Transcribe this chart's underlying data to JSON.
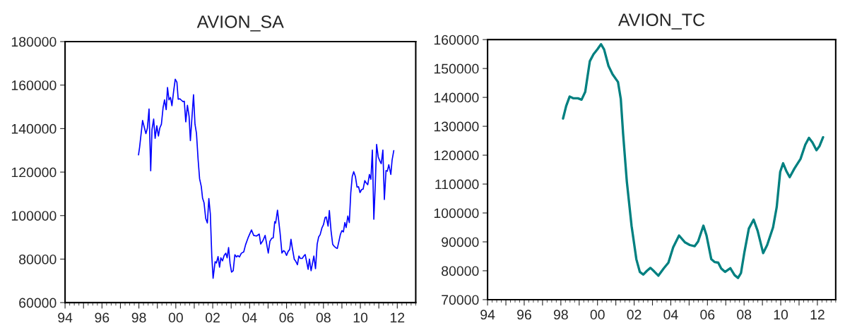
{
  "chart_data": [
    {
      "type": "line",
      "title": "AVION_SA",
      "x": [
        1997.98,
        1998.04,
        1998.2,
        1998.38,
        1998.46,
        1998.55,
        1998.64,
        1998.71,
        1998.8,
        1998.88,
        1998.97,
        1999.06,
        1999.13,
        1999.22,
        1999.31,
        1999.39,
        1999.48,
        1999.55,
        1999.63,
        1999.71,
        1999.79,
        1999.88,
        1999.97,
        2000.06,
        2000.13,
        2000.22,
        2000.31,
        2000.39,
        2000.46,
        2000.54,
        2000.63,
        2000.72,
        2000.79,
        2000.96,
        2001.04,
        2001.12,
        2001.21,
        2001.29,
        2001.38,
        2001.45,
        2001.53,
        2001.62,
        2001.71,
        2001.79,
        2001.87,
        2001.95,
        2002.02,
        2002.13,
        2002.2,
        2002.29,
        2002.37,
        2002.44,
        2002.53,
        2002.62,
        2002.71,
        2002.78,
        2002.86,
        2002.94,
        2003.02,
        2003.11,
        2003.2,
        2003.29,
        2003.36,
        2003.45,
        2003.55,
        2003.68,
        2003.78,
        2003.93,
        2004.1,
        2004.22,
        2004.37,
        2004.52,
        2004.6,
        2004.72,
        2004.84,
        2005.01,
        2005.1,
        2005.2,
        2005.28,
        2005.36,
        2005.41,
        2005.51,
        2005.65,
        2005.75,
        2005.84,
        2005.91,
        2006.0,
        2006.09,
        2006.17,
        2006.24,
        2006.32,
        2006.42,
        2006.5,
        2006.59,
        2006.67,
        2006.75,
        2006.85,
        2006.94,
        2007.01,
        2007.17,
        2007.24,
        2007.33,
        2007.48,
        2007.57,
        2007.66,
        2007.74,
        2007.82,
        2007.92,
        2008.0,
        2008.09,
        2008.15,
        2008.25,
        2008.32,
        2008.41,
        2008.5,
        2008.59,
        2008.68,
        2008.75,
        2008.83,
        2008.92,
        2009.0,
        2009.08,
        2009.16,
        2009.23,
        2009.32,
        2009.4,
        2009.48,
        2009.56,
        2009.64,
        2009.73,
        2009.82,
        2009.9,
        2009.98,
        2010.07,
        2010.15,
        2010.24,
        2010.32,
        2010.4,
        2010.49,
        2010.57,
        2010.65,
        2010.73,
        2010.81,
        2010.88,
        2010.97,
        2011.06,
        2011.13,
        2011.22,
        2011.3,
        2011.39,
        2011.46,
        2011.54,
        2011.65,
        2011.72,
        2011.81
      ],
      "series": [
        {
          "color": "#0000ff",
          "values": [
            127900,
            131500,
            143700,
            137700,
            140200,
            149000,
            120600,
            139600,
            144400,
            135500,
            141300,
            136600,
            140200,
            142000,
            149600,
            153200,
            148700,
            158900,
            153200,
            154300,
            150500,
            157000,
            162700,
            161300,
            153500,
            153700,
            153000,
            152400,
            152600,
            143100,
            150700,
            145600,
            134500,
            155600,
            142000,
            137800,
            125600,
            116900,
            113400,
            108000,
            105900,
            98700,
            96600,
            107800,
            100900,
            81400,
            71200,
            78800,
            78200,
            81200,
            76300,
            80600,
            79200,
            81700,
            82700,
            80600,
            85300,
            78000,
            74000,
            74700,
            82000,
            81000,
            81600,
            81000,
            82700,
            83300,
            86600,
            90100,
            93400,
            90900,
            90600,
            91500,
            86900,
            88500,
            90900,
            82800,
            88200,
            89600,
            89800,
            97200,
            96600,
            102500,
            92000,
            82800,
            83900,
            83400,
            81700,
            83600,
            84400,
            89100,
            84700,
            79900,
            79000,
            77400,
            81400,
            80300,
            80300,
            81500,
            82100,
            75300,
            80000,
            74700,
            81400,
            75600,
            86900,
            90200,
            91200,
            94400,
            95800,
            99100,
            99400,
            95200,
            102300,
            93100,
            86800,
            85800,
            85200,
            84900,
            87900,
            91400,
            93100,
            92500,
            96800,
            94500,
            99800,
            96800,
            110400,
            118000,
            120200,
            118000,
            113100,
            113300,
            110600,
            112000,
            112200,
            116100,
            115000,
            114200,
            118900,
            116700,
            130100,
            98300,
            114700,
            132700,
            126900,
            125000,
            123900,
            130100,
            107400,
            120700,
            120400,
            123400,
            118900,
            125600,
            129900
          ]
        }
      ],
      "xlim": [
        1994,
        2013
      ],
      "xticks": [
        {
          "value": 1994,
          "label": "94"
        },
        {
          "value": 1995,
          "label": null
        },
        {
          "value": 1996,
          "label": "96"
        },
        {
          "value": 1997,
          "label": null
        },
        {
          "value": 1998,
          "label": "98"
        },
        {
          "value": 1999,
          "label": null
        },
        {
          "value": 2000,
          "label": "00"
        },
        {
          "value": 2001,
          "label": null
        },
        {
          "value": 2002,
          "label": "02"
        },
        {
          "value": 2003,
          "label": null
        },
        {
          "value": 2004,
          "label": "04"
        },
        {
          "value": 2005,
          "label": null
        },
        {
          "value": 2006,
          "label": "06"
        },
        {
          "value": 2007,
          "label": null
        },
        {
          "value": 2008,
          "label": "08"
        },
        {
          "value": 2009,
          "label": null
        },
        {
          "value": 2010,
          "label": "10"
        },
        {
          "value": 2011,
          "label": null
        },
        {
          "value": 2012,
          "label": "12"
        }
      ],
      "ylim": [
        60000,
        180000
      ],
      "yticks": [
        60000,
        80000,
        100000,
        120000,
        140000,
        160000,
        180000
      ],
      "grid": false,
      "line_style": "solid"
    },
    {
      "type": "line",
      "title": "AVION_TC",
      "x": [
        1998.12,
        1998.29,
        1998.48,
        1998.67,
        1998.93,
        1999.13,
        1999.33,
        1999.58,
        1999.78,
        2000.0,
        2000.19,
        2000.36,
        2000.6,
        2000.82,
        2001.12,
        2001.27,
        2001.4,
        2001.6,
        2001.86,
        2002.12,
        2002.31,
        2002.5,
        2002.7,
        2002.89,
        2003.09,
        2003.32,
        2003.61,
        2003.87,
        2004.13,
        2004.45,
        2004.78,
        2005.04,
        2005.3,
        2005.49,
        2005.78,
        2005.95,
        2006.21,
        2006.4,
        2006.59,
        2006.75,
        2006.96,
        2007.25,
        2007.48,
        2007.67,
        2007.83,
        2008.02,
        2008.26,
        2008.52,
        2008.74,
        2009.04,
        2009.26,
        2009.58,
        2009.78,
        2009.97,
        2010.13,
        2010.3,
        2010.49,
        2010.75,
        2011.08,
        2011.34,
        2011.54,
        2011.73,
        2011.95,
        2012.12,
        2012.31
      ],
      "series": [
        {
          "color": "#008080",
          "values": [
            132700,
            137000,
            140300,
            139700,
            139700,
            139200,
            141900,
            152500,
            154900,
            156700,
            158400,
            156600,
            150900,
            148000,
            145300,
            139500,
            127200,
            110900,
            95500,
            84000,
            79600,
            78700,
            80000,
            81000,
            79800,
            78300,
            80800,
            82800,
            88100,
            92200,
            89800,
            88900,
            88500,
            90100,
            95600,
            92200,
            84000,
            83000,
            82800,
            80800,
            79600,
            80900,
            78500,
            77500,
            79200,
            86500,
            94600,
            97700,
            93800,
            86100,
            88900,
            95000,
            102000,
            114200,
            117200,
            114600,
            112400,
            115400,
            118700,
            123600,
            126000,
            124400,
            121700,
            123200,
            126200
          ]
        }
      ],
      "xlim": [
        1994,
        2013
      ],
      "xticks": [
        {
          "value": 1994,
          "label": "94"
        },
        {
          "value": 1995,
          "label": null
        },
        {
          "value": 1996,
          "label": "96"
        },
        {
          "value": 1997,
          "label": null
        },
        {
          "value": 1998,
          "label": "98"
        },
        {
          "value": 1999,
          "label": null
        },
        {
          "value": 2000,
          "label": "00"
        },
        {
          "value": 2001,
          "label": null
        },
        {
          "value": 2002,
          "label": "02"
        },
        {
          "value": 2003,
          "label": null
        },
        {
          "value": 2004,
          "label": "04"
        },
        {
          "value": 2005,
          "label": null
        },
        {
          "value": 2006,
          "label": "06"
        },
        {
          "value": 2007,
          "label": null
        },
        {
          "value": 2008,
          "label": "08"
        },
        {
          "value": 2009,
          "label": null
        },
        {
          "value": 2010,
          "label": "10"
        },
        {
          "value": 2011,
          "label": null
        },
        {
          "value": 2012,
          "label": "12"
        }
      ],
      "ylim": [
        70000,
        160000
      ],
      "yticks": [
        70000,
        80000,
        90000,
        100000,
        110000,
        120000,
        130000,
        140000,
        150000,
        160000
      ],
      "grid": false,
      "line_style": "solid"
    }
  ]
}
